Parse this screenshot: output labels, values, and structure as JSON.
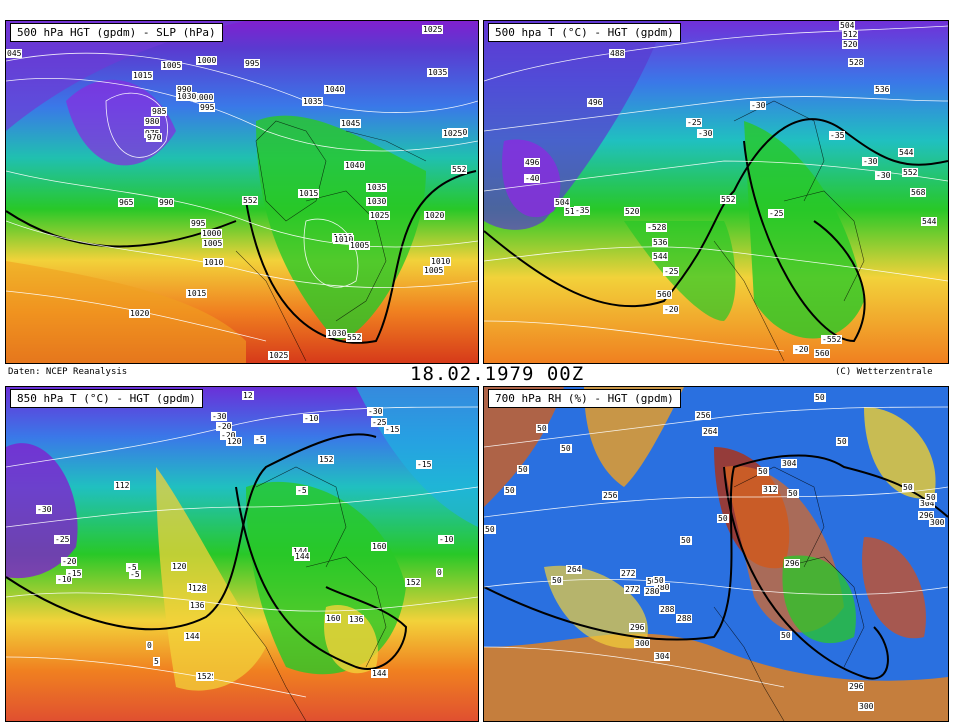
{
  "panels": [
    {
      "id": "p1",
      "title": "500 hPa HGT (gpdm) - SLP (hPa)",
      "labels": [
        "045",
        "1015",
        "1005",
        "1000",
        "995",
        "990",
        "985",
        "980",
        "975",
        "970",
        "965",
        "990",
        "995",
        "1000",
        "1005",
        "1010",
        "1015",
        "1020",
        "1025",
        "1030",
        "1035",
        "1040",
        "1045",
        "1040",
        "1035",
        "1030",
        "1025",
        "1020",
        "1010",
        "1005",
        "1015",
        "1010",
        "1020",
        "552",
        "552",
        "1025",
        "552",
        "1010",
        "1005",
        "1000",
        "995",
        "1030",
        "1035",
        "1025"
      ]
    },
    {
      "id": "p2",
      "title": "500 hpa T (°C) - HGT (gpdm)",
      "labels": [
        "488",
        "496",
        "496",
        "-40",
        "504",
        "512",
        "-35",
        "520",
        "-528",
        "536",
        "544",
        "-25",
        "560",
        "-20",
        "552",
        "-30",
        "-30",
        "-25",
        "-25",
        "-35",
        "-30",
        "-30",
        "536",
        "544",
        "552",
        "568",
        "544",
        "-552",
        "560",
        "-20",
        "504",
        "512",
        "520",
        "528"
      ]
    },
    {
      "id": "p3",
      "title": "850 hPa T (°C) - HGT (gpdm)",
      "labels": [
        "-30",
        "-25",
        "-20",
        "-15",
        "-10",
        "-5",
        "0",
        "5",
        "112",
        "120",
        "128",
        "136",
        "144",
        "152",
        "-30",
        "-20",
        "-20",
        "-5",
        "120",
        "-10",
        "-30",
        "-25",
        "-15",
        "152",
        "-5",
        "144",
        "160",
        "144",
        "-10",
        "-15",
        "136",
        "144",
        "152",
        "0",
        "-5",
        "128",
        "136",
        "144",
        "152",
        "160",
        "12"
      ]
    },
    {
      "id": "p4",
      "title": "700 hPa RH (%) - HGT (gpdm)",
      "labels": [
        "50",
        "50",
        "50",
        "50",
        "50",
        "50",
        "50",
        "256",
        "264",
        "256",
        "264",
        "272",
        "280",
        "288",
        "296",
        "300",
        "304",
        "312",
        "50",
        "50",
        "50",
        "272",
        "280",
        "288",
        "296",
        "296",
        "300",
        "50",
        "50",
        "50",
        "304",
        "296",
        "300",
        "304",
        "50",
        "50",
        "50",
        "50"
      ]
    }
  ],
  "datetime": "18.02.1979 00Z",
  "source": "Daten: NCEP Reanalysis",
  "copyright": "(C) Wetterzentrale"
}
